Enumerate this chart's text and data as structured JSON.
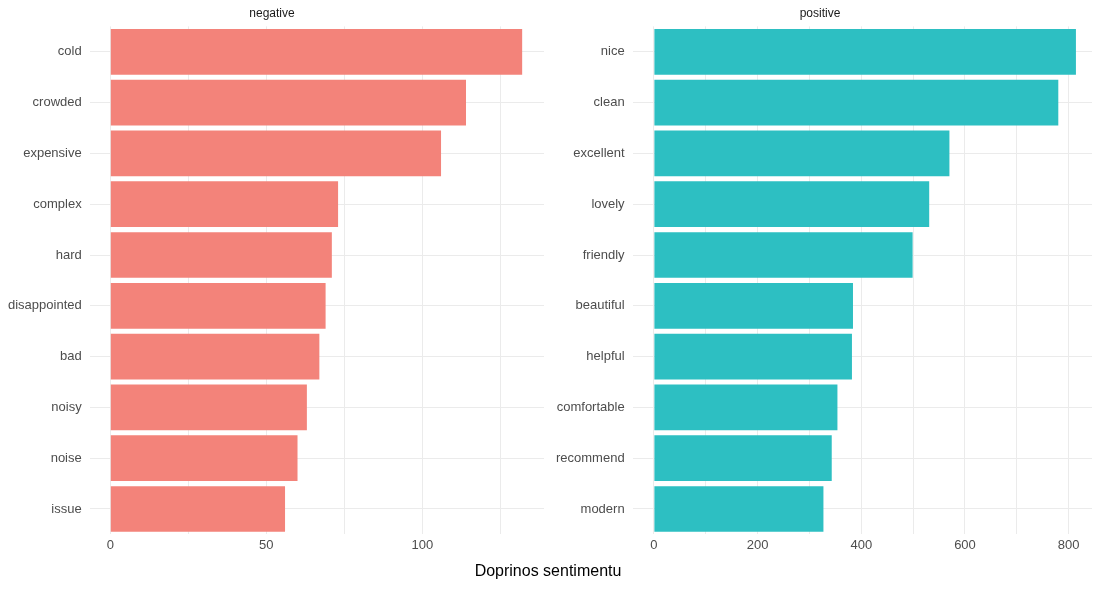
{
  "chart_data": [
    {
      "type": "bar",
      "orientation": "horizontal",
      "title": "negative",
      "xlabel": "Doprinos sentimentu",
      "categories": [
        "cold",
        "crowded",
        "expensive",
        "complex",
        "hard",
        "disappointed",
        "bad",
        "noisy",
        "noise",
        "issue"
      ],
      "values": [
        132,
        114,
        106,
        73,
        71,
        69,
        67,
        63,
        60,
        56
      ],
      "color": "#f3837a",
      "xlim": [
        -6.6,
        139
      ],
      "xticks": [
        0,
        {
          "value": 25,
          "label": null
        },
        50,
        {
          "value": 75,
          "label": null
        },
        100,
        {
          "value": 125,
          "label": null
        }
      ],
      "grid": true,
      "legend": false
    },
    {
      "type": "bar",
      "orientation": "horizontal",
      "title": "positive",
      "categories": [
        "nice",
        "clean",
        "excellent",
        "lovely",
        "friendly",
        "beautiful",
        "helpful",
        "comfortable",
        "recommend",
        "modern"
      ],
      "values": [
        814,
        780,
        570,
        531,
        499,
        384,
        382,
        354,
        343,
        327
      ],
      "color": "#2dbfc2",
      "xlim": [
        -41,
        845
      ],
      "xticks": [
        0,
        {
          "value": 100,
          "label": null
        },
        200,
        {
          "value": 300,
          "label": null
        },
        400,
        {
          "value": 500,
          "label": null
        },
        600,
        {
          "value": 700,
          "label": null
        },
        800
      ],
      "grid": true,
      "legend": false
    }
  ]
}
